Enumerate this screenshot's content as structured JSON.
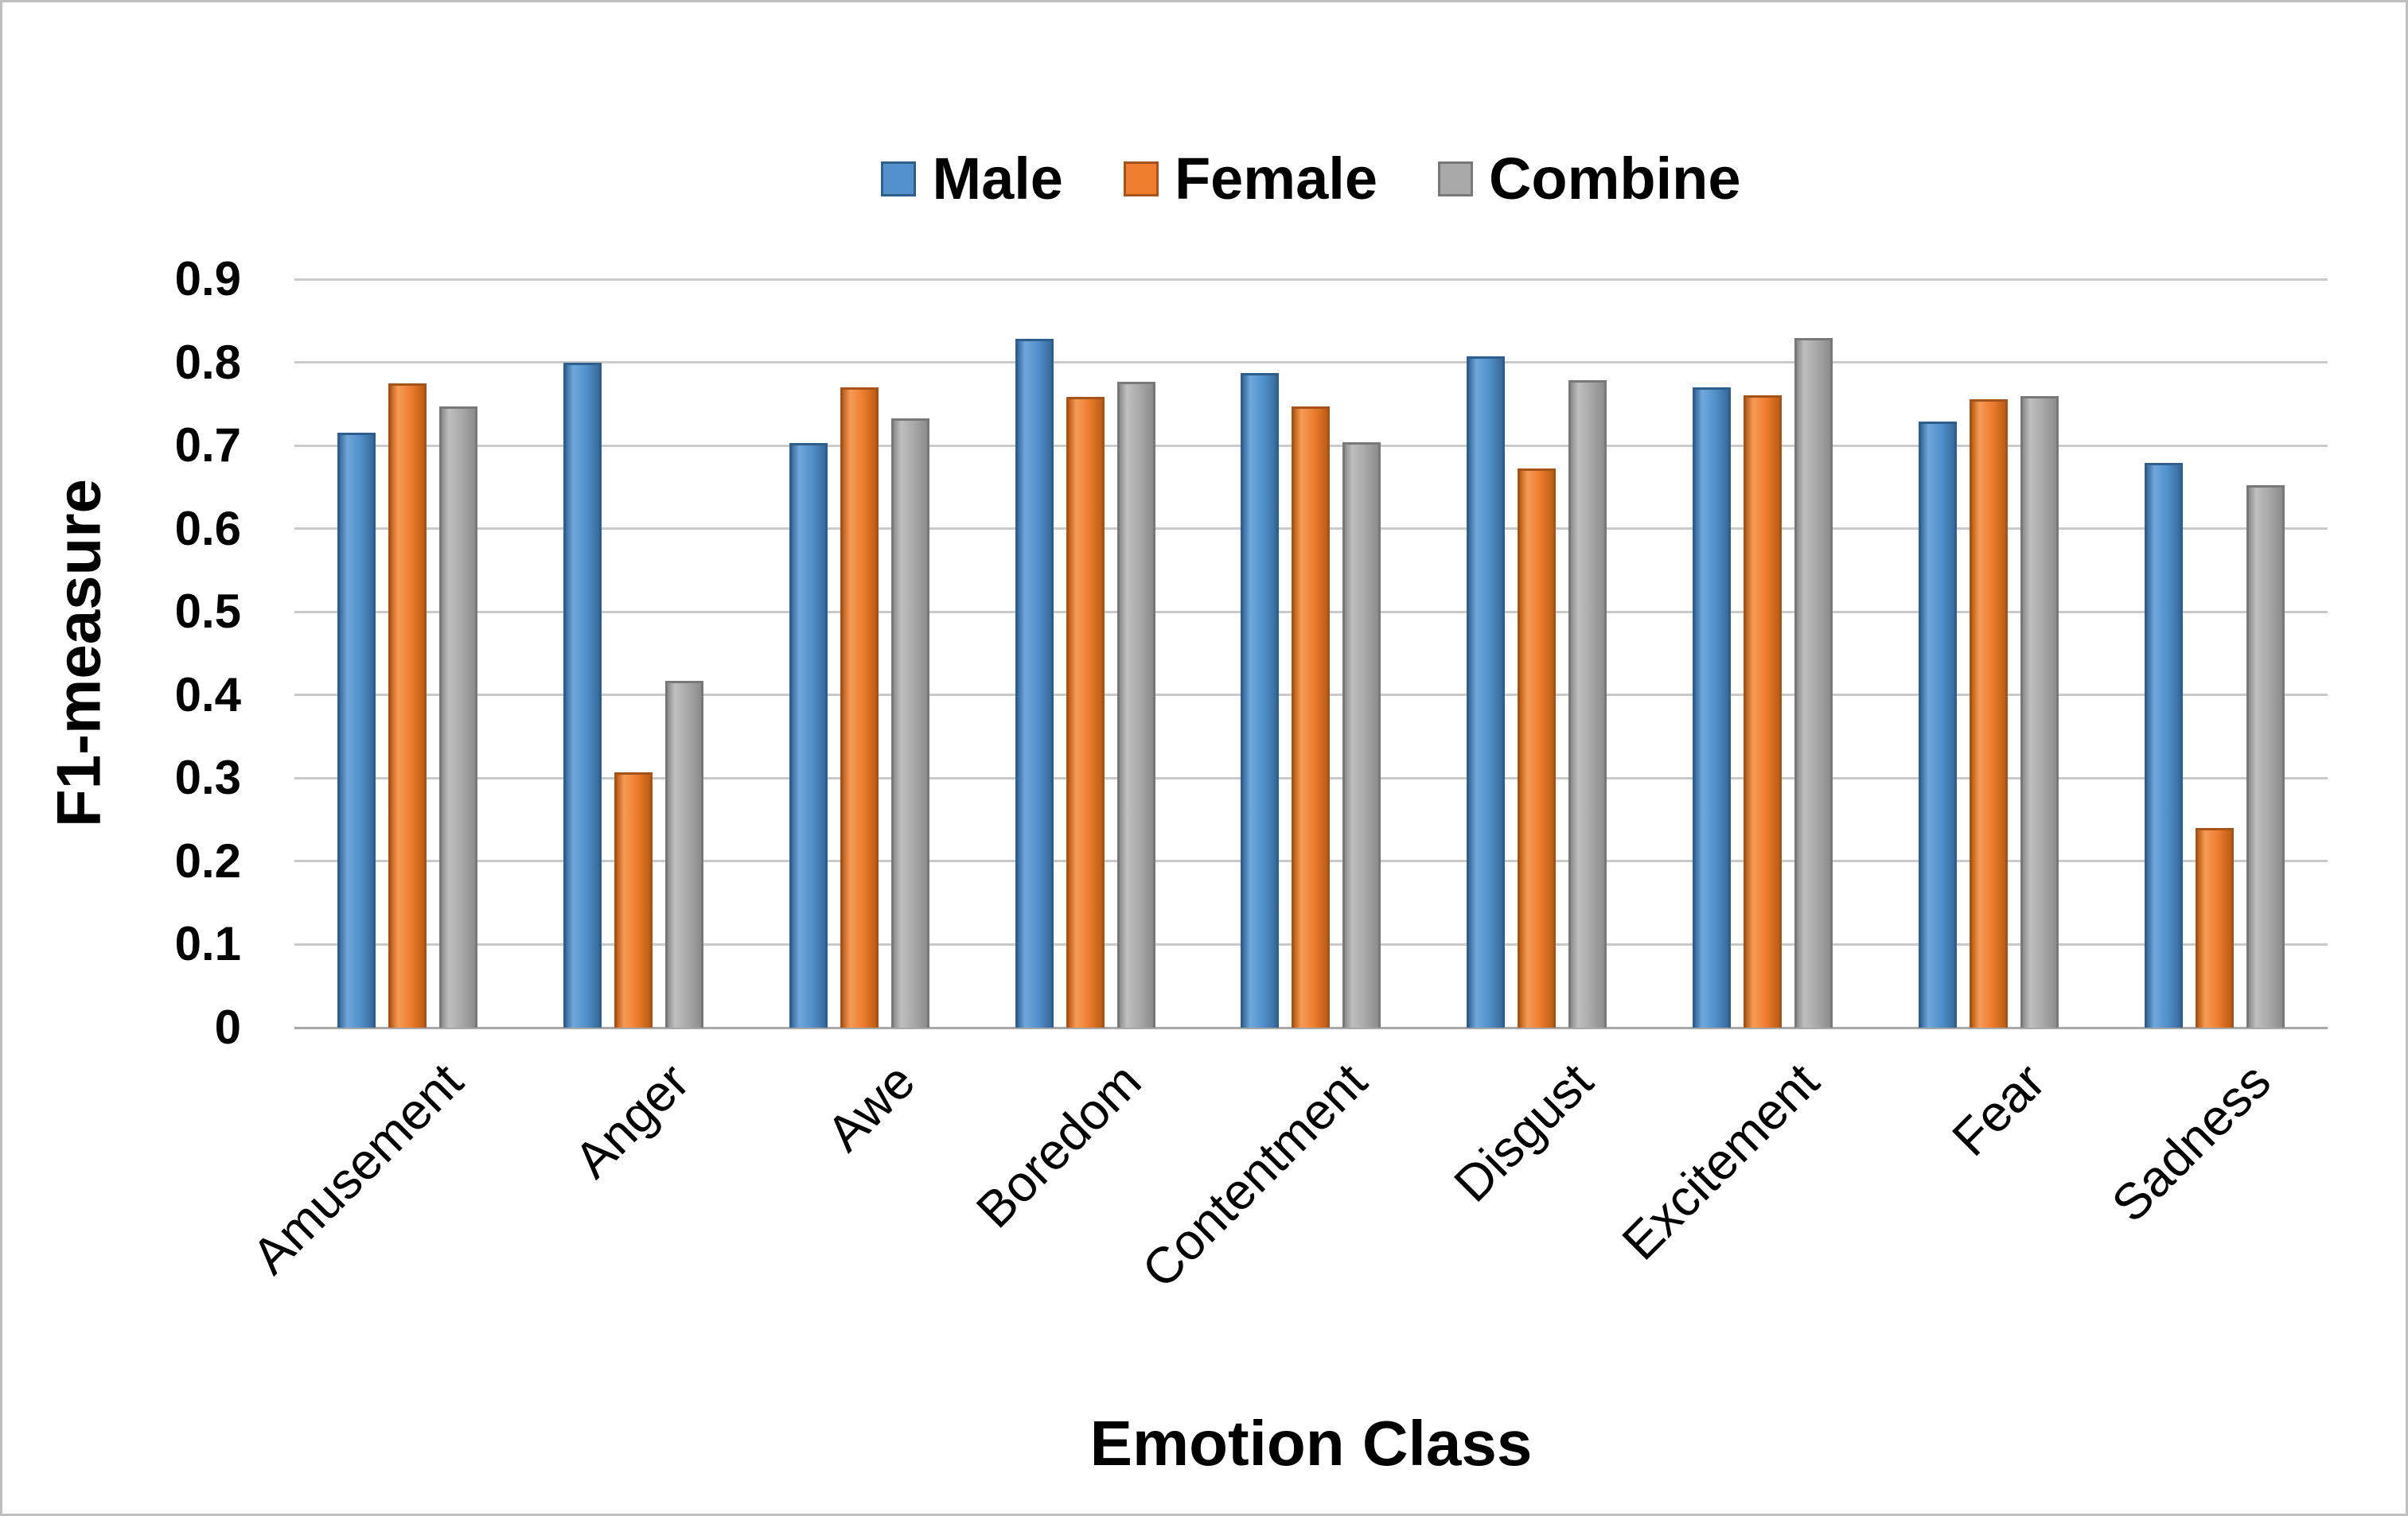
{
  "chart_data": {
    "type": "bar",
    "title": "",
    "xlabel": "Emotion Class",
    "ylabel": "F1-measure",
    "categories": [
      "Amusement",
      "Anger",
      "Awe",
      "Boredom",
      "Contentment",
      "Disgust",
      "Excitement",
      "Fear",
      "Sadness"
    ],
    "series": [
      {
        "name": "Male",
        "color": "#5291CC",
        "color_light": "#6FA7DB",
        "color_dark": "#38699C",
        "border": "#2E5E8E",
        "values": [
          0.715,
          0.8,
          0.703,
          0.828,
          0.787,
          0.807,
          0.77,
          0.729,
          0.679
        ]
      },
      {
        "name": "Female",
        "color": "#EE7D2F",
        "color_light": "#F59B57",
        "color_dark": "#BC5D13",
        "border": "#A6531B",
        "values": [
          0.775,
          0.307,
          0.77,
          0.758,
          0.747,
          0.672,
          0.76,
          0.756,
          0.24
        ]
      },
      {
        "name": "Combine",
        "color": "#A8A8A8",
        "color_light": "#BFBFBF",
        "color_dark": "#8C8C8C",
        "border": "#787878",
        "values": [
          0.747,
          0.417,
          0.733,
          0.777,
          0.704,
          0.779,
          0.829,
          0.759,
          0.652
        ]
      }
    ],
    "ylim": [
      0,
      0.9
    ],
    "yticks": [
      "0",
      "0.1",
      "0.2",
      "0.3",
      "0.4",
      "0.5",
      "0.6",
      "0.7",
      "0.8",
      "0.9"
    ],
    "legend_position": "top-center",
    "grid": "horizontal"
  },
  "styles": {
    "grid_color": "#C9C9C9",
    "axis_line_color": "#A8A8A8",
    "frame_border_color": "#BFBFBF",
    "text_color": "#000000",
    "background": "#FFFFFF"
  }
}
